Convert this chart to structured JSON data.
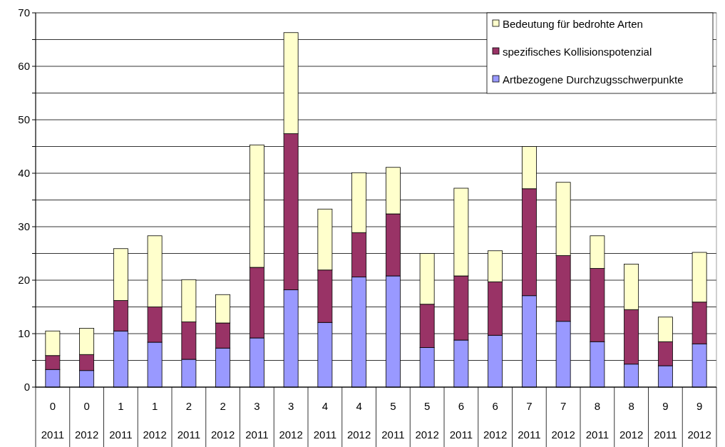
{
  "chart_data": {
    "type": "bar",
    "stacked": true,
    "categories": [
      "0\n2011",
      "0\n2012",
      "1\n2011",
      "1\n2012",
      "2\n2011",
      "2\n2012",
      "3\n2011",
      "3\n2012",
      "4\n2011",
      "4\n2012",
      "5\n2011",
      "5\n2012",
      "6\n2011",
      "6\n2012",
      "7\n2011",
      "7\n2012",
      "8\n2011",
      "8\n2012",
      "9\n2011",
      "9\n2012"
    ],
    "series": [
      {
        "name": "Artbezogene Durchzugsschwerpunkte",
        "color": "#9999ff",
        "values": [
          3.3,
          3.1,
          10.5,
          8.4,
          5.2,
          7.3,
          9.2,
          18.2,
          12.1,
          20.6,
          20.8,
          7.4,
          8.8,
          9.7,
          17.1,
          12.3,
          8.5,
          4.3,
          4.0,
          8.1
        ]
      },
      {
        "name": "spezifisches Kollisionspotenzial",
        "color": "#993366",
        "values": [
          2.6,
          3.0,
          5.7,
          6.6,
          7.0,
          4.7,
          13.2,
          29.2,
          9.8,
          8.3,
          11.6,
          8.1,
          12.0,
          10.0,
          20.0,
          12.3,
          13.7,
          10.2,
          4.5,
          7.8
        ]
      },
      {
        "name": "Bedeutung für bedrohte Arten",
        "color": "#ffffcc",
        "values": [
          4.6,
          4.9,
          9.7,
          13.3,
          7.9,
          5.3,
          22.9,
          18.9,
          11.4,
          11.2,
          8.7,
          9.5,
          16.4,
          5.8,
          7.9,
          13.7,
          6.1,
          8.5,
          4.6,
          9.3
        ]
      }
    ],
    "ylim": [
      0,
      70
    ],
    "yticks": [
      0,
      {
        "value": 5,
        "label": null
      },
      10,
      {
        "value": 15,
        "label": null
      },
      20,
      {
        "value": 25,
        "label": null
      },
      30,
      {
        "value": 35,
        "label": null
      },
      40,
      {
        "value": 45,
        "label": null
      },
      50,
      {
        "value": 55,
        "label": null
      },
      60,
      {
        "value": 65,
        "label": null
      },
      70
    ],
    "grid": "y",
    "legend": "top right"
  }
}
